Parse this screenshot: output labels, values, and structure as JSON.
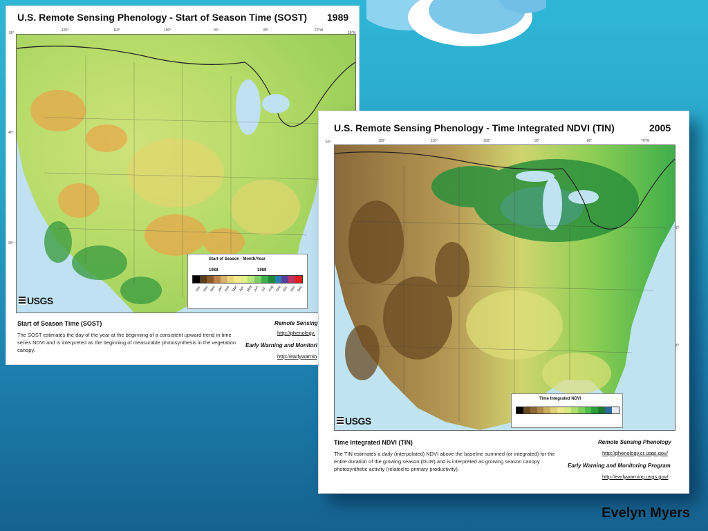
{
  "left_map": {
    "title": "U.S. Remote Sensing Phenology - Start of Season Time (SOST)",
    "year": "1989",
    "coords": [
      "50°",
      "120°",
      "110°",
      "100°",
      "90°",
      "80°",
      "70°W",
      "50°N",
      "40°",
      "30°"
    ],
    "legend": {
      "title": "Start of Season - Month/Year",
      "years": [
        "1988",
        "1989"
      ],
      "swatch_colors": [
        "#000000",
        "#5b3b1a",
        "#8a5a2b",
        "#b9834a",
        "#d7b06a",
        "#e8d47a",
        "#f2ea8c",
        "#e0f08a",
        "#b8e67a",
        "#7fd064",
        "#3fae4c",
        "#1e8a3a",
        "#2a7fb5",
        "#5a3f9a",
        "#c03060",
        "#e02020"
      ],
      "month_labels": [
        "Oct",
        "Nov",
        "Dec",
        "Jan",
        "Feb",
        "Mar",
        "Apr",
        "May",
        "Jun",
        "Jul",
        "Aug",
        "Sep",
        "Oct",
        "Nov",
        "Dec"
      ]
    },
    "logo": "USGS",
    "description_title": "Start of Season Time (SOST)",
    "description_body": "The SOST estimates the day of the year at the beginning of a consistent upward trend in time series NDVI and is interpreted as the beginning of measurable photosynthesis in the vegetation canopy.",
    "source_1": "Remote Sensing",
    "link_1": "http://phenology.",
    "source_2": "Early Warning and Monitori",
    "link_2": "http://earlywarnin"
  },
  "right_map": {
    "title": "U.S. Remote Sensing Phenology - Time Integrated NDVI (TIN)",
    "year": "2005",
    "coords": [
      "50°",
      "120°",
      "110°",
      "100°",
      "90°",
      "80°",
      "70°W",
      "40°",
      "30°"
    ],
    "legend": {
      "title": "Time Integrated NDVI",
      "swatch_colors": [
        "#000000",
        "#6b4a22",
        "#8c6a35",
        "#b08a4a",
        "#cbb060",
        "#e0d07a",
        "#eee68c",
        "#d4ea80",
        "#aee070",
        "#7fd05c",
        "#4fbf4a",
        "#2a9e3a",
        "#1c7a30",
        "#2e6aa0",
        "#e6ecf2"
      ]
    },
    "logo": "USGS",
    "description_title": "Time Integrated NDVI (TIN)",
    "description_body": "The TIN estimates a daily (interpolated) NDVI above the baseline summed (or integrated) for the entire duration of the growing season (DUR) and is interpreted as growing season canopy photosynthetic activity (related to primary productivity).",
    "source_1": "Remote Sensing Phenology",
    "link_1": "http://phenology.cr.usgs.gov/",
    "source_2": "Early Warning and Monitoring Program",
    "link_2": "http://earlywarning.usgs.gov/"
  },
  "author": "Evelyn Myers"
}
